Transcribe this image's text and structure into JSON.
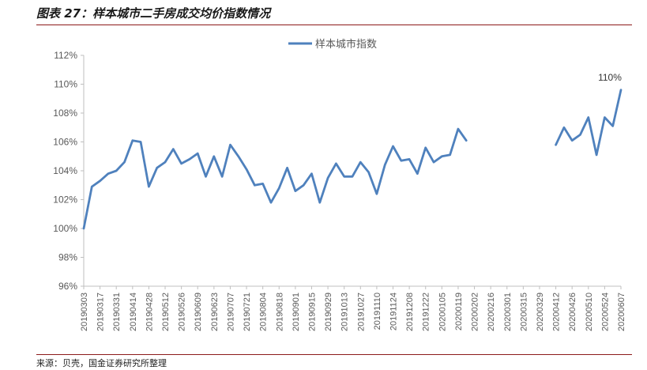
{
  "figure_title": "图表 27：样本城市二手房成交均价指数情况",
  "source_note": "来源：贝壳，国金证券研究所整理",
  "chart_data": {
    "type": "line",
    "title": "",
    "xlabel": "",
    "ylabel": "",
    "ylim": [
      96,
      112
    ],
    "yticks": [
      96,
      98,
      100,
      102,
      104,
      106,
      108,
      110,
      112
    ],
    "y_unit": "%",
    "grid": false,
    "legend_position": "top-center",
    "color": "#4f81bd",
    "x_ticks": [
      "20190303",
      "20190317",
      "20190331",
      "20190414",
      "20190428",
      "20190512",
      "20190526",
      "20190609",
      "20190623",
      "20190707",
      "20190721",
      "20190804",
      "20190818",
      "20190901",
      "20190915",
      "20190929",
      "20191013",
      "20191027",
      "20191110",
      "20191124",
      "20191208",
      "20191222",
      "20200105",
      "20200119",
      "20200202",
      "20200216",
      "20200301",
      "20200315",
      "20200329",
      "20200412",
      "20200426",
      "20200510",
      "20200524",
      "20200607"
    ],
    "series": [
      {
        "name": "样本城市指数",
        "x": [
          "20190303",
          "20190310",
          "20190317",
          "20190324",
          "20190331",
          "20190407",
          "20190414",
          "20190421",
          "20190428",
          "20190505",
          "20190512",
          "20190519",
          "20190526",
          "20190602",
          "20190609",
          "20190616",
          "20190623",
          "20190630",
          "20190707",
          "20190714",
          "20190721",
          "20190728",
          "20190804",
          "20190811",
          "20190818",
          "20190825",
          "20190901",
          "20190908",
          "20190915",
          "20190922",
          "20190929",
          "20191006",
          "20191013",
          "20191020",
          "20191027",
          "20191103",
          "20191110",
          "20191117",
          "20191124",
          "20191201",
          "20191208",
          "20191215",
          "20191222",
          "20191229",
          "20200105",
          "20200112",
          "20200119",
          "20200126",
          "20200202",
          "20200209",
          "20200216",
          "20200223",
          "20200301",
          "20200308",
          "20200315",
          "20200322",
          "20200329",
          "20200405",
          "20200412",
          "20200419",
          "20200426",
          "20200503",
          "20200510",
          "20200517",
          "20200524",
          "20200531",
          "20200607"
        ],
        "values": [
          100.0,
          102.9,
          103.3,
          103.8,
          104.0,
          104.6,
          106.1,
          106.0,
          102.9,
          104.2,
          104.6,
          105.5,
          104.5,
          104.8,
          105.2,
          103.6,
          105.0,
          103.6,
          105.8,
          105.0,
          104.1,
          103.0,
          103.1,
          101.8,
          102.8,
          104.2,
          102.6,
          103.0,
          103.8,
          101.8,
          103.5,
          104.5,
          103.6,
          103.6,
          104.6,
          103.9,
          102.4,
          104.4,
          105.7,
          104.7,
          104.8,
          103.8,
          105.6,
          104.6,
          105.0,
          105.1,
          106.9,
          106.1,
          null,
          null,
          null,
          null,
          null,
          null,
          null,
          null,
          null,
          null,
          105.8,
          107.0,
          106.1,
          106.5,
          107.7,
          105.1,
          107.7,
          107.1,
          109.6
        ]
      }
    ],
    "annotation": {
      "x": "20200607",
      "text": "110%"
    }
  }
}
